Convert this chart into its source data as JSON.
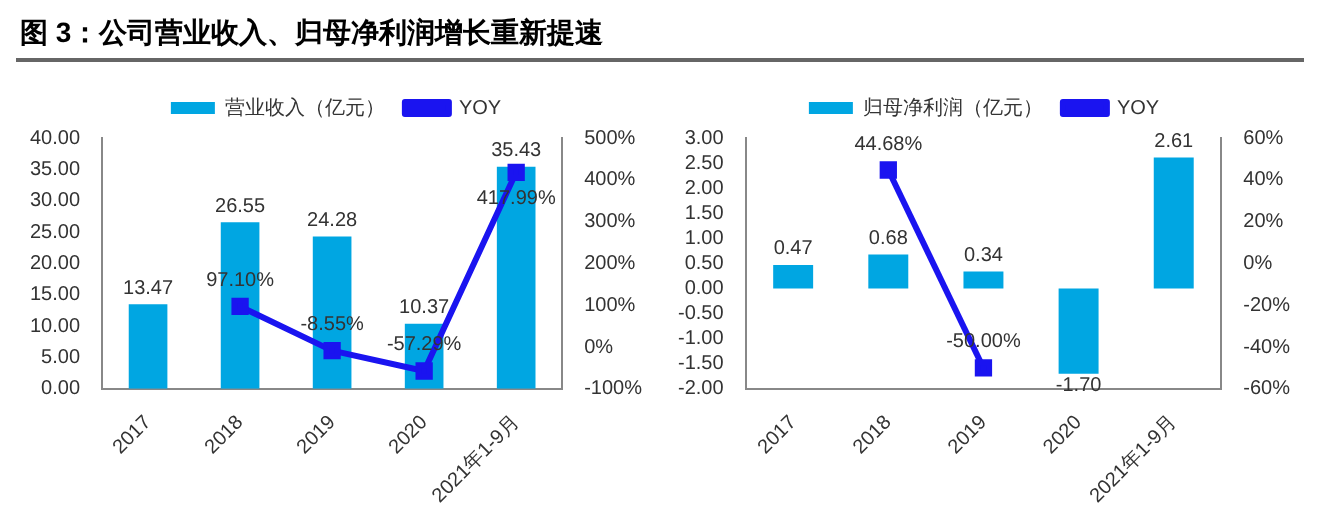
{
  "chart_data": [
    {
      "type": "bar",
      "title": "图 3：公司营业收入、归母净利润增长重新提速",
      "categories": [
        "2017",
        "2018",
        "2019",
        "2020",
        "2021年1-9月"
      ],
      "series": [
        {
          "name": "营业收入（亿元）",
          "color": "#00a6e2",
          "values": [
            13.47,
            26.55,
            24.28,
            10.37,
            35.43
          ],
          "value_labels": [
            "13.47",
            "26.55",
            "24.28",
            "10.37",
            "35.43"
          ]
        },
        {
          "name": "YOY",
          "type": "line",
          "axis": "y2",
          "color": "#1a14f0",
          "values": [
            null,
            97.1,
            -8.55,
            -57.29,
            417.99
          ],
          "value_labels": [
            null,
            "97.10%",
            "-8.55%",
            "-57.29%",
            "417.99%"
          ]
        }
      ],
      "ylim": [
        0,
        40
      ],
      "yticks": [
        {
          "value": 0,
          "label": "0.00"
        },
        {
          "value": 5,
          "label": "5.00"
        },
        {
          "value": 10,
          "label": "10.00"
        },
        {
          "value": 15,
          "label": "15.00"
        },
        {
          "value": 20,
          "label": "20.00"
        },
        {
          "value": 25,
          "label": "25.00"
        },
        {
          "value": 30,
          "label": "30.00"
        },
        {
          "value": 35,
          "label": "35.00"
        },
        {
          "value": 40,
          "label": "40.00"
        }
      ],
      "y2lim": [
        -100,
        500
      ],
      "y2ticks": [
        {
          "value": -100,
          "label": "-100%"
        },
        {
          "value": 0,
          "label": "0%"
        },
        {
          "value": 100,
          "label": "100%"
        },
        {
          "value": 200,
          "label": "200%"
        },
        {
          "value": 300,
          "label": "300%"
        },
        {
          "value": 400,
          "label": "400%"
        },
        {
          "value": 500,
          "label": "500%"
        }
      ],
      "marker": "square",
      "legend": "top",
      "grid": false
    },
    {
      "type": "bar",
      "categories": [
        "2017",
        "2018",
        "2019",
        "2020",
        "2021年1-9月"
      ],
      "series": [
        {
          "name": "归母净利润（亿元）",
          "color": "#00a6e2",
          "values": [
            0.47,
            0.68,
            0.34,
            -1.7,
            2.61
          ],
          "value_labels": [
            "0.47",
            "0.68",
            "0.34",
            "-1.70",
            "2.61"
          ]
        },
        {
          "name": "YOY",
          "type": "line",
          "axis": "y2",
          "color": "#1a14f0",
          "values": [
            null,
            44.68,
            -50.0,
            null,
            null
          ],
          "value_labels": [
            null,
            "44.68%",
            "-50.00%",
            null,
            null
          ]
        }
      ],
      "ylim": [
        -2,
        3
      ],
      "yticks": [
        {
          "value": -2,
          "label": "-2.00"
        },
        {
          "value": -1.5,
          "label": "-1.50"
        },
        {
          "value": -1,
          "label": "-1.00"
        },
        {
          "value": -0.5,
          "label": "-0.50"
        },
        {
          "value": 0,
          "label": "0.00"
        },
        {
          "value": 0.5,
          "label": "0.50"
        },
        {
          "value": 1,
          "label": "1.00"
        },
        {
          "value": 1.5,
          "label": "1.50"
        },
        {
          "value": 2,
          "label": "2.00"
        },
        {
          "value": 2.5,
          "label": "2.50"
        },
        {
          "value": 3,
          "label": "3.00"
        }
      ],
      "y2lim": [
        -60,
        60
      ],
      "y2ticks": [
        {
          "value": -60,
          "label": "-60%"
        },
        {
          "value": -40,
          "label": "-40%"
        },
        {
          "value": -20,
          "label": "-20%"
        },
        {
          "value": 0,
          "label": "0%"
        },
        {
          "value": 20,
          "label": "20%"
        },
        {
          "value": 40,
          "label": "40%"
        },
        {
          "value": 60,
          "label": "60%"
        }
      ],
      "marker": "square",
      "legend": "top",
      "grid": false
    }
  ]
}
